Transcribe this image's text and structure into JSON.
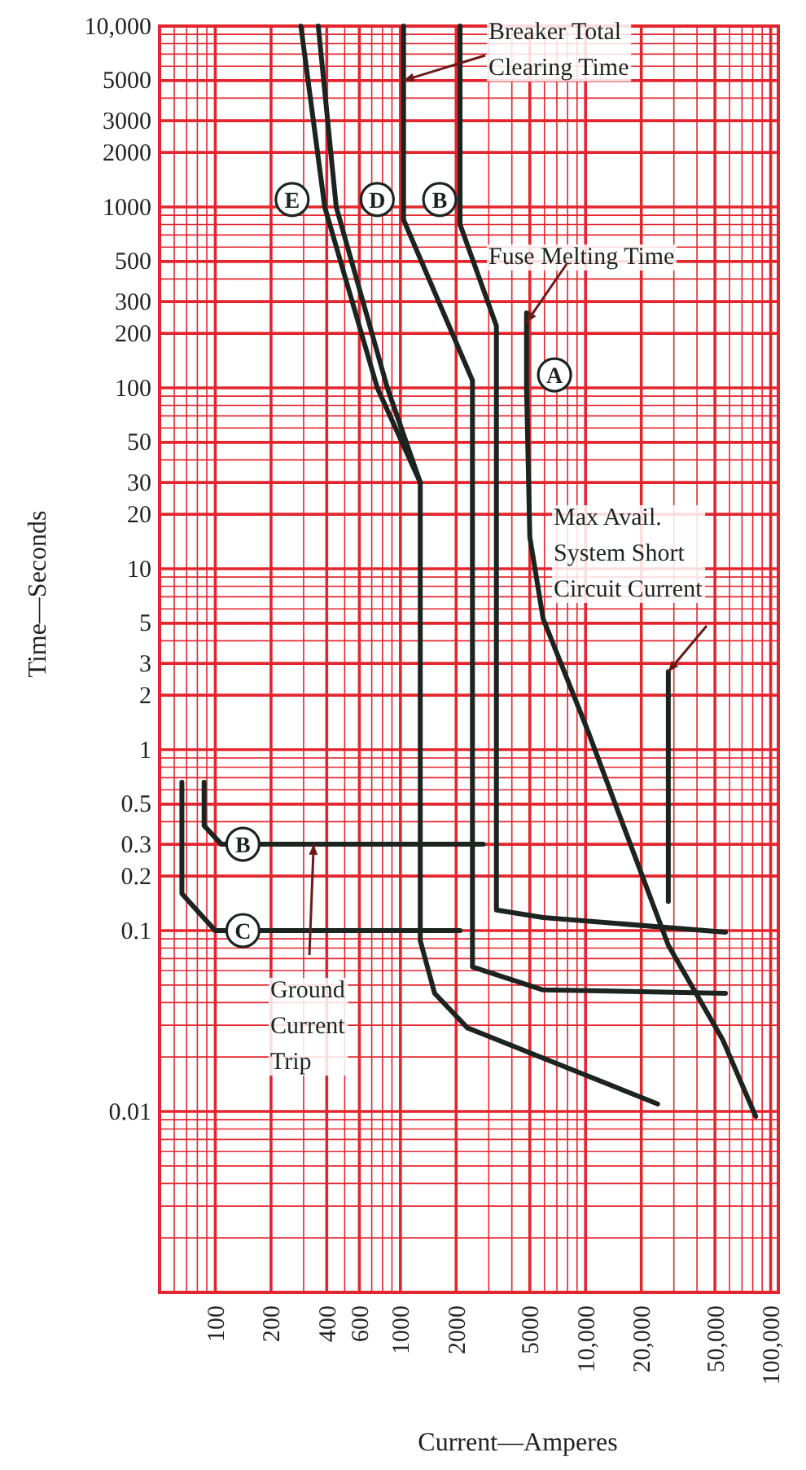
{
  "chart_data": {
    "type": "line",
    "xlabel": "Current—Amperes",
    "ylabel": "Time—Seconds",
    "log": "xy",
    "grid": true,
    "marker": "none",
    "line_style": "solid",
    "xlim": [
      50,
      110000
    ],
    "ylim": [
      0.001,
      10000
    ],
    "xticks": [
      {
        "value": 60,
        "label": null
      },
      {
        "value": 70,
        "label": null
      },
      {
        "value": 80,
        "label": null
      },
      {
        "value": 90,
        "label": null
      },
      100,
      200,
      {
        "value": 300,
        "label": null
      },
      400,
      {
        "value": 500,
        "label": null
      },
      600,
      {
        "value": 700,
        "label": null
      },
      {
        "value": 800,
        "label": null
      },
      {
        "value": 900,
        "label": null
      },
      1000,
      2000,
      {
        "value": 3000,
        "label": null
      },
      {
        "value": 4000,
        "label": null
      },
      5000,
      {
        "value": 6000,
        "label": null
      },
      {
        "value": 7000,
        "label": null
      },
      {
        "value": 8000,
        "label": null
      },
      {
        "value": 9000,
        "label": null
      },
      {
        "value": 10000,
        "label": "10,000"
      },
      {
        "value": 20000,
        "label": "20,000"
      },
      {
        "value": 30000,
        "label": null
      },
      {
        "value": 40000,
        "label": null
      },
      {
        "value": 50000,
        "label": "50,000"
      },
      {
        "value": 60000,
        "label": null
      },
      {
        "value": 70000,
        "label": null
      },
      {
        "value": 80000,
        "label": null
      },
      {
        "value": 90000,
        "label": null
      },
      {
        "value": 100000,
        "label": "100,000"
      }
    ],
    "yticks": [
      {
        "value": 0.002,
        "label": null
      },
      {
        "value": 0.003,
        "label": null
      },
      {
        "value": 0.004,
        "label": null
      },
      {
        "value": 0.005,
        "label": null
      },
      {
        "value": 0.006,
        "label": null
      },
      {
        "value": 0.007,
        "label": null
      },
      {
        "value": 0.008,
        "label": null
      },
      {
        "value": 0.009,
        "label": null
      },
      0.01,
      {
        "value": 0.02,
        "label": null
      },
      {
        "value": 0.03,
        "label": null
      },
      {
        "value": 0.04,
        "label": null
      },
      {
        "value": 0.05,
        "label": null
      },
      {
        "value": 0.06,
        "label": null
      },
      {
        "value": 0.07,
        "label": null
      },
      {
        "value": 0.08,
        "label": null
      },
      {
        "value": 0.09,
        "label": null
      },
      0.1,
      0.2,
      0.3,
      {
        "value": 0.4,
        "label": null
      },
      0.5,
      {
        "value": 0.6,
        "label": null
      },
      {
        "value": 0.7,
        "label": null
      },
      {
        "value": 0.8,
        "label": null
      },
      {
        "value": 0.9,
        "label": null
      },
      1,
      2,
      3,
      {
        "value": 4,
        "label": null
      },
      5,
      {
        "value": 6,
        "label": null
      },
      {
        "value": 7,
        "label": null
      },
      {
        "value": 8,
        "label": null
      },
      {
        "value": 9,
        "label": null
      },
      10,
      20,
      30,
      {
        "value": 40,
        "label": null
      },
      50,
      {
        "value": 60,
        "label": null
      },
      {
        "value": 70,
        "label": null
      },
      {
        "value": 80,
        "label": null
      },
      {
        "value": 90,
        "label": null
      },
      100,
      200,
      300,
      {
        "value": 400,
        "label": null
      },
      500,
      {
        "value": 600,
        "label": null
      },
      {
        "value": 700,
        "label": null
      },
      {
        "value": 800,
        "label": null
      },
      {
        "value": 900,
        "label": null
      },
      1000,
      2000,
      3000,
      {
        "value": 4000,
        "label": null
      },
      5000,
      {
        "value": 6000,
        "label": null
      },
      {
        "value": 7000,
        "label": null
      },
      {
        "value": 8000,
        "label": null
      },
      {
        "value": 9000,
        "label": null
      },
      {
        "value": 10000,
        "label": "10,000"
      }
    ],
    "series": [
      {
        "color": "#1c2420",
        "x": [
          290,
          390,
          750,
          1280,
          1280,
          1530,
          2300,
          24500
        ],
        "values": [
          10000,
          1000,
          100,
          30,
          0.088,
          0.045,
          0.029,
          0.011
        ]
      },
      {
        "color": "#1c2420",
        "x": [
          360,
          450,
          850,
          1280
        ],
        "values": [
          10000,
          1000,
          100,
          30
        ]
      },
      {
        "color": "#1c2420",
        "x": [
          1040,
          1040,
          2450,
          2450,
          5900,
          57000
        ],
        "values": [
          10000,
          850,
          110,
          0.063,
          0.047,
          0.045
        ]
      },
      {
        "color": "#1c2420",
        "x": [
          2100,
          2100,
          3300,
          3300,
          5900,
          57000
        ],
        "values": [
          10000,
          800,
          220,
          0.13,
          0.118,
          0.098
        ]
      },
      {
        "color": "#1c2420",
        "x": [
          4800,
          4800,
          5000,
          5900,
          10200,
          28000,
          55000,
          83000
        ],
        "values": [
          260,
          100,
          15,
          5.3,
          1.3,
          0.083,
          0.025,
          0.0094
        ]
      },
      {
        "color": "#1c2420",
        "x": [
          28000,
          28000
        ],
        "values": [
          2.7,
          0.145
        ]
      },
      {
        "color": "#1c2420",
        "x": [
          87,
          87,
          108,
          2800
        ],
        "values": [
          0.66,
          0.38,
          0.3,
          0.3
        ]
      },
      {
        "color": "#1c2420",
        "x": [
          66,
          66,
          100,
          2100
        ],
        "values": [
          0.66,
          0.16,
          0.1,
          0.1
        ]
      }
    ],
    "annotations": [
      {
        "text": "Breaker Total Clearing Time",
        "x": 1040,
        "y": 5000
      },
      {
        "text": "Fuse Melting Time",
        "x": 4800,
        "y": 230
      },
      {
        "text": "Max Avail. System Short Circuit Current",
        "x": 28000,
        "y": 2.7
      },
      {
        "text": "Ground Current Trip",
        "x": 340,
        "y": 0.3
      },
      {
        "text": "E",
        "x": 260,
        "y": 1100
      },
      {
        "text": "D",
        "x": 750,
        "y": 1100
      },
      {
        "text": "B",
        "x": 1630,
        "y": 1100
      },
      {
        "text": "A",
        "x": 6800,
        "y": 118
      },
      {
        "text": "B",
        "x": 141,
        "y": 0.3
      },
      {
        "text": "C",
        "x": 141,
        "y": 0.1
      }
    ]
  }
}
